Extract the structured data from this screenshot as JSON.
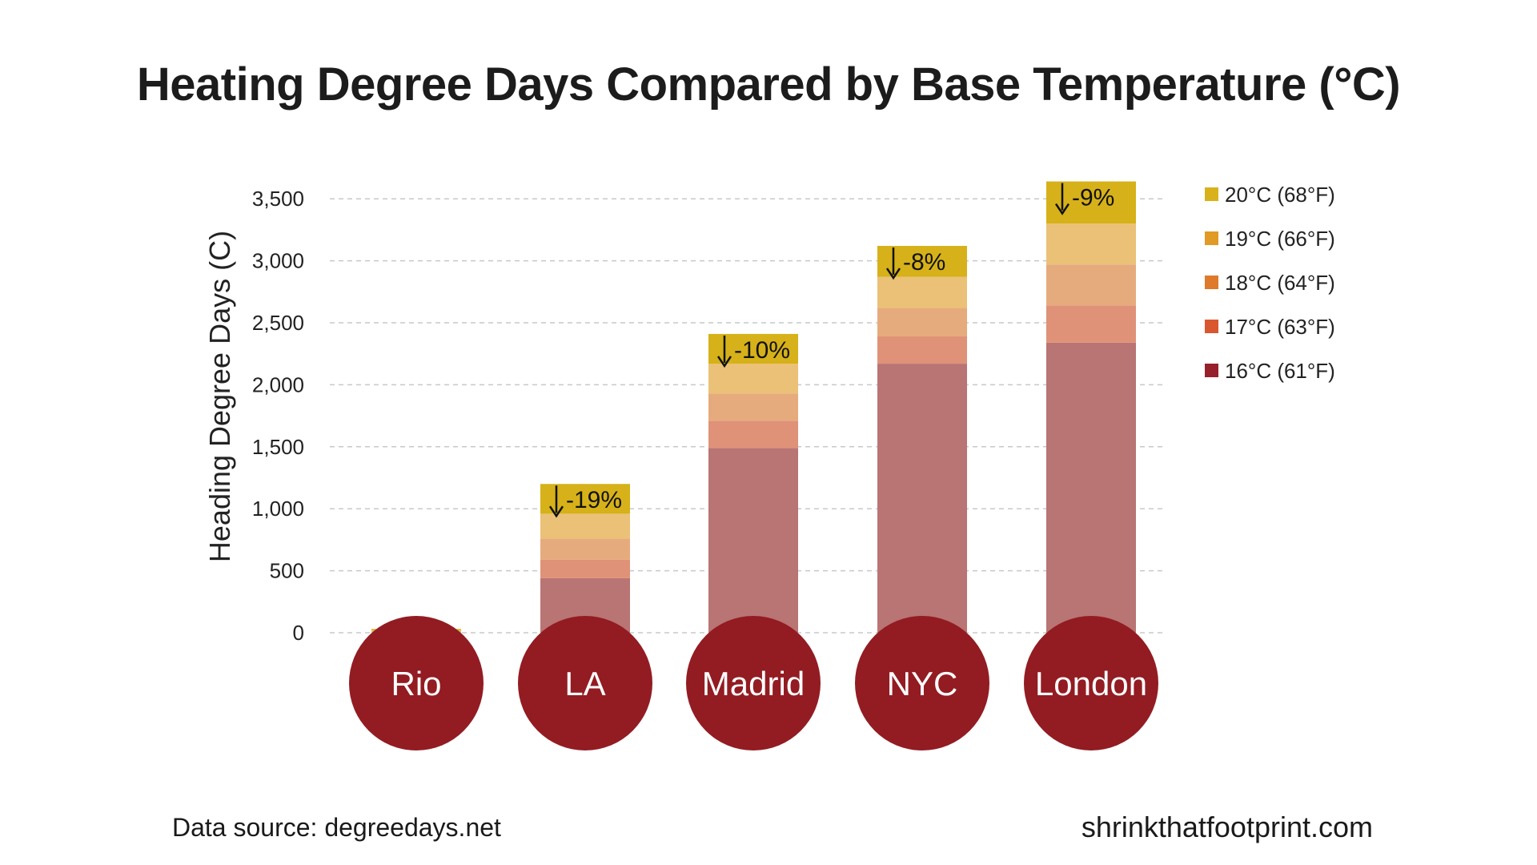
{
  "title": "Heating Degree Days Compared by Base Temperature (°C)",
  "footer": {
    "source": "Data source: degreedays.net",
    "brand": "shrinkthatfootprint.com"
  },
  "chart_data": {
    "type": "bar",
    "stacked": true,
    "title": "Heating Degree Days Compared by Base Temperature (°C)",
    "ylabel": "Heading Degree Days (C)",
    "xlabel": "",
    "ylim": [
      0,
      3500
    ],
    "yticks": [
      0,
      500,
      1000,
      1500,
      2000,
      2500,
      3000,
      3500
    ],
    "ytick_labels": [
      "0",
      "500",
      "1,000",
      "1,500",
      "2,000",
      "2,500",
      "3,000",
      "3,500"
    ],
    "grid": true,
    "legend_position": "top-right",
    "categories": [
      "Rio",
      "LA",
      "Madrid",
      "NYC",
      "London"
    ],
    "base_temperatures": [
      "16°C (61°F)",
      "17°C (63°F)",
      "18°C (64°F)",
      "19°C (66°F)",
      "20°C (68°F)"
    ],
    "totals_by_base": {
      "16°C (61°F)": [
        2,
        440,
        1490,
        2170,
        2340
      ],
      "17°C (63°F)": [
        5,
        590,
        1710,
        2390,
        2640
      ],
      "18°C (64°F)": [
        10,
        760,
        1930,
        2620,
        2970
      ],
      "19°C (66°F)": [
        18,
        960,
        2170,
        2870,
        3300
      ],
      "20°C (68°F)": [
        30,
        1200,
        2410,
        3120,
        3640
      ]
    },
    "change_labels": [
      "",
      "-19%",
      "-10%",
      "-8%",
      "-9%"
    ],
    "legend": [
      "20°C (68°F)",
      "19°C (66°F)",
      "18°C (64°F)",
      "17°C (63°F)",
      "16°C (61°F)"
    ]
  },
  "colors": {
    "base_20": "#d6b119",
    "base_19": "#eac177",
    "base_18": "#e6ab7c",
    "base_17": "#df9278",
    "base_16": "#b97474",
    "legend_20": "#d9b21b",
    "legend_19": "#e09a25",
    "legend_18": "#df7a2a",
    "legend_17": "#d9572f",
    "legend_16": "#96212a",
    "city_circle": "#921c22",
    "grid": "#c8c8c8"
  }
}
